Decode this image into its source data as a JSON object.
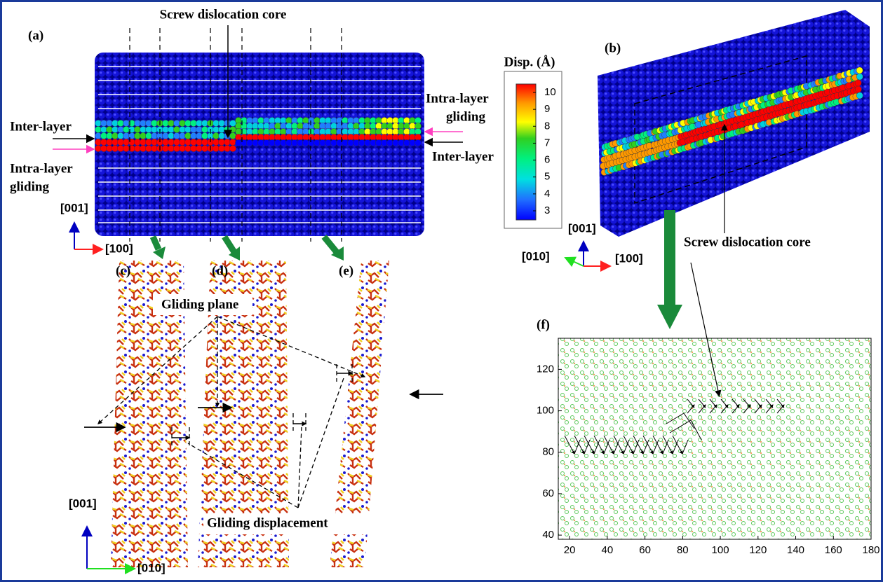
{
  "panel_a": {
    "label": "(a)",
    "core_label": "Screw dislocation core",
    "left_inter": "Inter-layer",
    "left_intra": [
      "Intra-layer",
      "gliding"
    ],
    "right_intra": [
      "Intra-layer",
      "gliding"
    ],
    "right_inter": "Inter-layer",
    "axis_z": "[001]",
    "axis_x": "[100]"
  },
  "colorbar": {
    "title": "Disp. (Å)",
    "ticks": [
      10,
      9,
      8,
      7,
      6,
      5,
      4,
      3
    ]
  },
  "panel_b": {
    "label": "(b)",
    "axis_z": "[001]",
    "axis_y": "[010]",
    "axis_x": "[100]",
    "core_label": "Screw dislocation core"
  },
  "panels_cde": {
    "labels": [
      "(c)",
      "(d)",
      "(e)"
    ],
    "plane_label": "Gliding plane",
    "displacement_label": "Gliding displacement",
    "axis_z": "[001]",
    "axis_y": "[010]"
  },
  "panel_f": {
    "label": "(f)",
    "xlim": [
      14,
      180
    ],
    "ylim": [
      38,
      135
    ],
    "xticks": [
      20,
      40,
      60,
      80,
      100,
      120,
      140,
      160,
      180
    ],
    "yticks": [
      40,
      60,
      80,
      100,
      120
    ]
  }
}
